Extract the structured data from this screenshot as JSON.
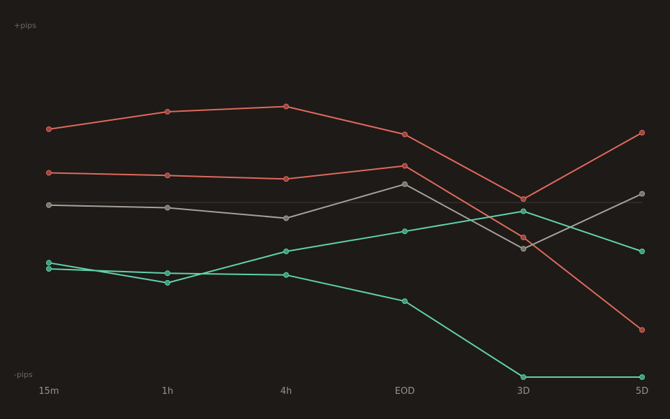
{
  "chart_data": {
    "type": "line",
    "categories": [
      "15m",
      "1h",
      "4h",
      "EOD",
      "3D",
      "5D"
    ],
    "y_top_label": "+pips",
    "y_bottom_label": "-pips",
    "ylim": [
      -100,
      100
    ],
    "grid": false,
    "zero_line": true,
    "series": [
      {
        "color": "#e06a5e",
        "marker_color": "#9a453f",
        "values": [
          42,
          52,
          55,
          39,
          2,
          40
        ]
      },
      {
        "color": "#e06a5e",
        "marker_color": "#9a453f",
        "values": [
          17,
          15.5,
          13.5,
          21,
          -20,
          -73
        ]
      },
      {
        "color": "#a8a099",
        "marker_color": "#7a726b",
        "values": [
          -1.5,
          -3,
          -9,
          10.5,
          -26.5,
          5
        ]
      },
      {
        "color": "#5fd3ae",
        "marker_color": "#3f9a78",
        "values": [
          -34.5,
          -46,
          -28,
          -16.5,
          -5,
          -28
        ]
      },
      {
        "color": "#5fd3ae",
        "marker_color": "#3f9a78",
        "values": [
          -38,
          -40.5,
          -41.5,
          -56.5,
          -100,
          -100
        ]
      }
    ]
  }
}
